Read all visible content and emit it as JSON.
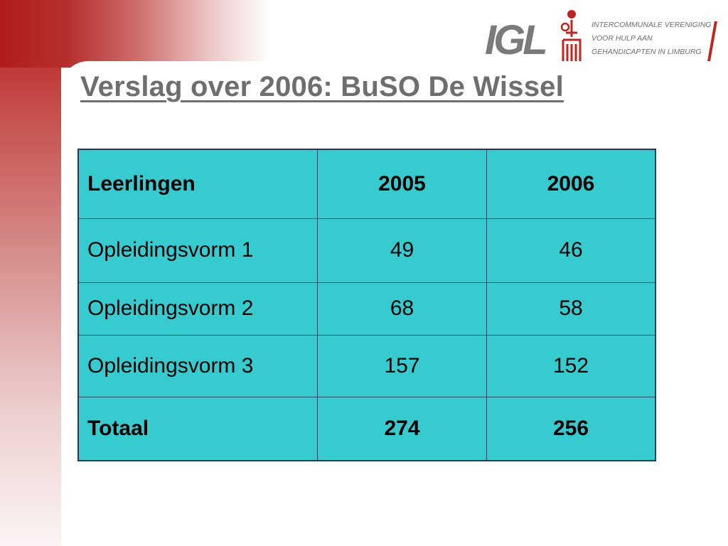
{
  "slide": {
    "title": "Verslag over 2006: BuSO De Wissel"
  },
  "logo": {
    "letters": "IGL",
    "lines": [
      "INTERCOMMUNALE VERENIGING",
      "VOOR HULP AAN",
      "GEHANDICAPTEN IN LIMBURG"
    ],
    "accent_color": "#c0251f"
  },
  "table": {
    "columns": [
      "Leerlingen",
      "2005",
      "2006"
    ],
    "rows": [
      {
        "label": "Opleidingsvorm 1",
        "v2005": "49",
        "v2006": "46"
      },
      {
        "label": "Opleidingsvorm 2",
        "v2005": "68",
        "v2006": "58"
      },
      {
        "label": "Opleidingsvorm 3",
        "v2005": "157",
        "v2006": "152"
      }
    ],
    "total": {
      "label": "Totaal",
      "v2005": "274",
      "v2006": "256"
    },
    "cell_color": "#36cbce"
  }
}
